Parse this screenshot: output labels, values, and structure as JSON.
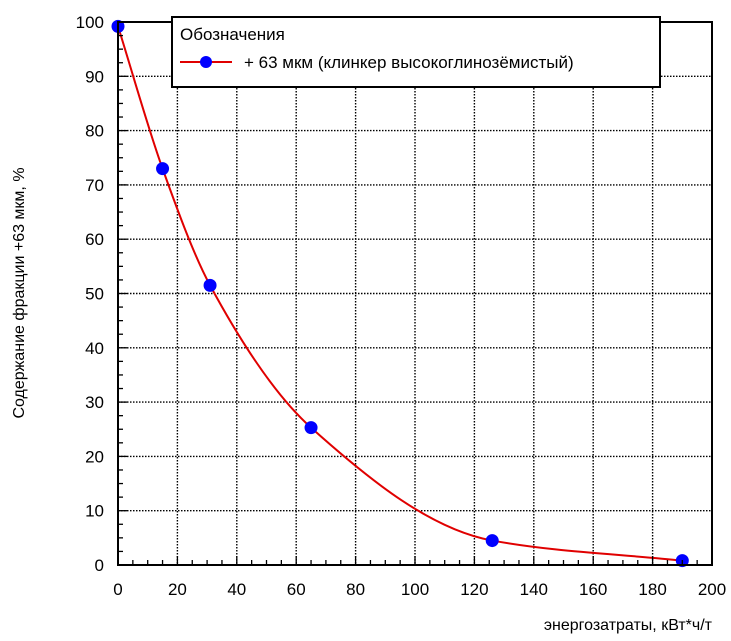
{
  "chart_data": {
    "type": "line",
    "xlabel": "энергозатраты, кВт*ч/т",
    "ylabel": "Содержание фракции +63 мкм, %",
    "xlim": [
      0,
      200
    ],
    "ylim": [
      0,
      100
    ],
    "x_ticks": [
      0,
      20,
      40,
      60,
      80,
      100,
      120,
      140,
      160,
      180,
      200
    ],
    "y_ticks": [
      0,
      10,
      20,
      30,
      40,
      50,
      60,
      70,
      80,
      90,
      100
    ],
    "grid": true,
    "legend": {
      "title": "Обозначения",
      "placement": "top-right"
    },
    "series": [
      {
        "name": "+ 63 мкм (клинкер высокоглинозёмистый)",
        "color": "#e00000",
        "marker_color": "#0000ff",
        "x": [
          0,
          15,
          31,
          65,
          126,
          190
        ],
        "y": [
          99.2,
          73,
          51.5,
          25.3,
          4.5,
          0.8
        ]
      }
    ]
  }
}
